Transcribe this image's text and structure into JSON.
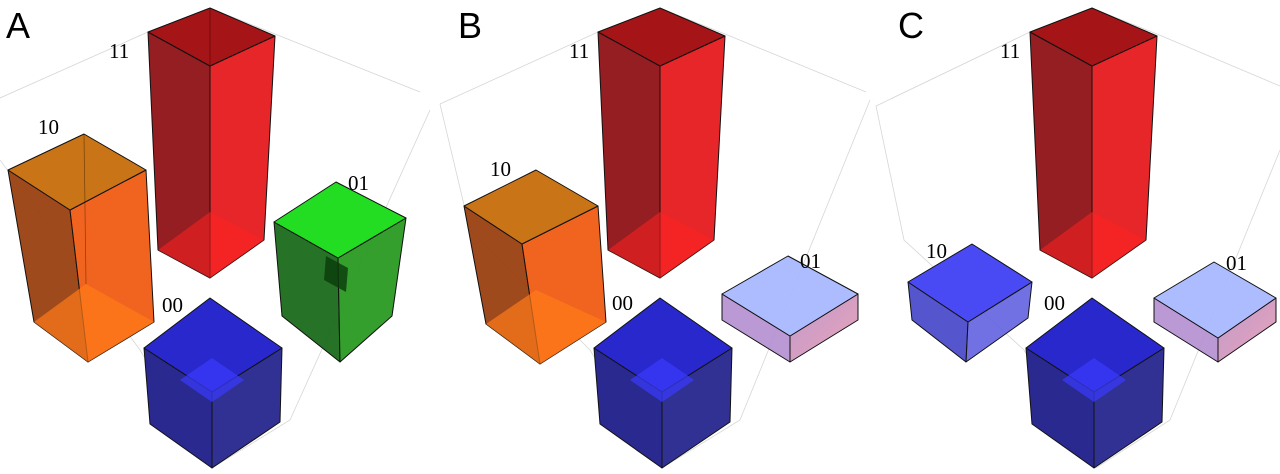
{
  "figure": {
    "panels": [
      {
        "letter": "A",
        "bars": [
          {
            "label": "11",
            "color": "#e8141a"
          },
          {
            "label": "10",
            "color": "#f26a10"
          },
          {
            "label": "01",
            "color": "#22d022"
          },
          {
            "label": "00",
            "color": "#2424d8"
          }
        ]
      },
      {
        "letter": "B",
        "bars": [
          {
            "label": "11",
            "color": "#e8141a"
          },
          {
            "label": "10",
            "color": "#f26a10"
          },
          {
            "label": "01",
            "color": "#a8b4ff"
          },
          {
            "label": "00",
            "color": "#2424d8"
          }
        ]
      },
      {
        "letter": "C",
        "bars": [
          {
            "label": "11",
            "color": "#e8141a"
          },
          {
            "label": "10",
            "color": "#4848f0"
          },
          {
            "label": "01",
            "color": "#a8b4ff"
          },
          {
            "label": "00",
            "color": "#2424d8"
          }
        ]
      }
    ]
  }
}
